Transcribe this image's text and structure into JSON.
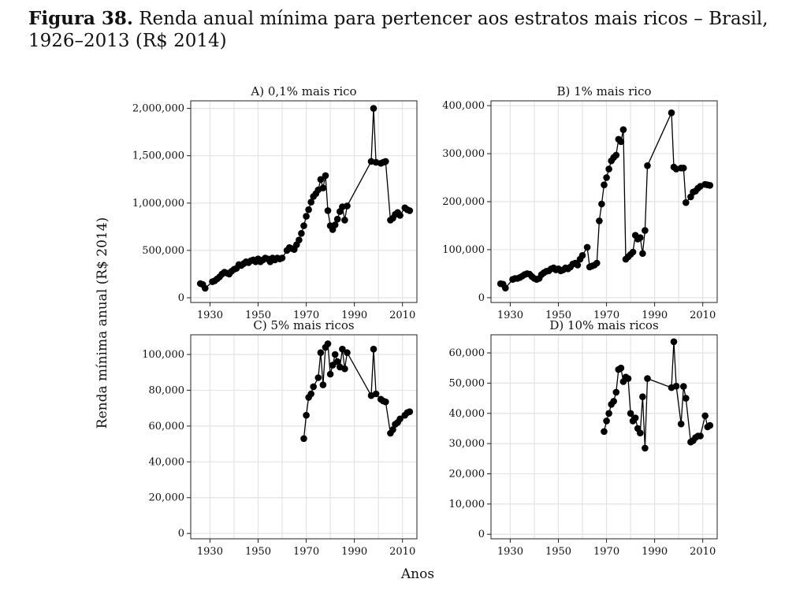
{
  "figure": {
    "label": "Figura 38.",
    "title": "Renda anual mínima para pertencer aos estratos mais ricos – Brasil, 1926–2013 (R$ 2014)"
  },
  "chart_data": {
    "type": "line",
    "shared_xlabel": "Anos",
    "shared_ylabel": "Renda mínima anual (R$ 2014)",
    "grid": true,
    "panels": [
      {
        "title": "A) 0,1% mais rico",
        "xlim": [
          1922,
          2016
        ],
        "xticks": [
          1930,
          1950,
          1970,
          1990,
          2010
        ],
        "xtick_labels": [
          "1930",
          "1950",
          "1970",
          "1990",
          "2010"
        ],
        "ylim": [
          -50000,
          2080000
        ],
        "yticks": [
          0,
          500000,
          1000000,
          1500000,
          2000000
        ],
        "ytick_labels": [
          "0",
          "500,000",
          "1,000,000",
          "1,500,000",
          "2,000,000"
        ],
        "x": [
          1926,
          1927,
          1928,
          1931,
          1932,
          1933,
          1934,
          1935,
          1936,
          1937,
          1938,
          1939,
          1940,
          1941,
          1942,
          1943,
          1944,
          1945,
          1946,
          1947,
          1948,
          1949,
          1950,
          1951,
          1952,
          1953,
          1954,
          1955,
          1956,
          1957,
          1958,
          1959,
          1960,
          1962,
          1963,
          1964,
          1965,
          1966,
          1967,
          1968,
          1969,
          1970,
          1971,
          1972,
          1973,
          1974,
          1975,
          1976,
          1977,
          1978,
          1979,
          1980,
          1981,
          1982,
          1983,
          1984,
          1985,
          1986,
          1987,
          1997,
          1998,
          1999,
          2001,
          2002,
          2003,
          2005,
          2006,
          2007,
          2008,
          2009,
          2011,
          2012,
          2013
        ],
        "y": [
          150000,
          140000,
          100000,
          170000,
          180000,
          200000,
          220000,
          250000,
          270000,
          260000,
          250000,
          280000,
          300000,
          310000,
          350000,
          340000,
          360000,
          380000,
          370000,
          390000,
          400000,
          380000,
          410000,
          380000,
          400000,
          420000,
          410000,
          380000,
          420000,
          400000,
          420000,
          410000,
          420000,
          500000,
          530000,
          520000,
          510000,
          560000,
          610000,
          680000,
          760000,
          860000,
          930000,
          1010000,
          1070000,
          1100000,
          1140000,
          1250000,
          1160000,
          1290000,
          920000,
          760000,
          720000,
          770000,
          830000,
          910000,
          960000,
          820000,
          970000,
          1440000,
          2000000,
          1430000,
          1420000,
          1430000,
          1440000,
          820000,
          840000,
          880000,
          900000,
          870000,
          950000,
          930000,
          920000
        ]
      },
      {
        "title": "B) 1% mais rico",
        "xlim": [
          1922,
          2016
        ],
        "xticks": [
          1930,
          1950,
          1970,
          1990,
          2010
        ],
        "xtick_labels": [
          "1930",
          "1950",
          "1970",
          "1990",
          "2010"
        ],
        "ylim": [
          -10000,
          410000
        ],
        "yticks": [
          0,
          100000,
          200000,
          300000,
          400000
        ],
        "ytick_labels": [
          "0",
          "100,000",
          "200,000",
          "300,000",
          "400,000"
        ],
        "x": [
          1926,
          1927,
          1928,
          1931,
          1932,
          1933,
          1934,
          1935,
          1936,
          1937,
          1938,
          1939,
          1940,
          1941,
          1942,
          1943,
          1944,
          1945,
          1946,
          1947,
          1948,
          1949,
          1950,
          1951,
          1952,
          1953,
          1954,
          1955,
          1956,
          1957,
          1958,
          1959,
          1960,
          1962,
          1963,
          1964,
          1965,
          1966,
          1967,
          1968,
          1969,
          1970,
          1971,
          1972,
          1973,
          1974,
          1975,
          1976,
          1977,
          1978,
          1979,
          1980,
          1981,
          1982,
          1983,
          1984,
          1985,
          1986,
          1987,
          1997,
          1998,
          1999,
          2001,
          2002,
          2003,
          2005,
          2006,
          2007,
          2008,
          2009,
          2011,
          2012,
          2013
        ],
        "y": [
          29000,
          28000,
          20000,
          38000,
          40000,
          40000,
          42000,
          45000,
          48000,
          50000,
          49000,
          44000,
          40000,
          38000,
          40000,
          48000,
          52000,
          55000,
          56000,
          60000,
          62000,
          58000,
          60000,
          56000,
          58000,
          62000,
          60000,
          64000,
          70000,
          72000,
          68000,
          80000,
          88000,
          105000,
          64000,
          66000,
          68000,
          72000,
          160000,
          195000,
          235000,
          250000,
          268000,
          285000,
          292000,
          297000,
          330000,
          325000,
          350000,
          80000,
          85000,
          90000,
          95000,
          130000,
          122000,
          125000,
          92000,
          140000,
          275000,
          385000,
          272000,
          268000,
          270000,
          270000,
          198000,
          210000,
          220000,
          222000,
          228000,
          232000,
          236000,
          235000,
          234000
        ]
      },
      {
        "title": "C) 5% mais ricos",
        "xlim": [
          1922,
          2016
        ],
        "xticks": [
          1930,
          1950,
          1970,
          1990,
          2010
        ],
        "xtick_labels": [
          "1930",
          "1950",
          "1970",
          "1990",
          "2010"
        ],
        "ylim": [
          -3000,
          111000
        ],
        "yticks": [
          0,
          20000,
          40000,
          60000,
          80000,
          100000
        ],
        "ytick_labels": [
          "0",
          "20,000",
          "40,000",
          "60,000",
          "80,000",
          "100,000"
        ],
        "x": [
          1969,
          1970,
          1971,
          1972,
          1973,
          1975,
          1976,
          1977,
          1978,
          1979,
          1980,
          1981,
          1982,
          1983,
          1984,
          1985,
          1986,
          1987,
          1997,
          1998,
          1999,
          2001,
          2002,
          2003,
          2005,
          2006,
          2007,
          2008,
          2009,
          2011,
          2012,
          2013
        ],
        "y": [
          53000,
          66000,
          76000,
          78000,
          82000,
          87000,
          101000,
          83000,
          104000,
          106000,
          89000,
          94000,
          100000,
          96000,
          93000,
          103000,
          92000,
          101000,
          77000,
          103000,
          78000,
          75000,
          74000,
          73500,
          56000,
          58000,
          61000,
          62000,
          64000,
          66000,
          67500,
          68000
        ]
      },
      {
        "title": "D) 10% mais ricos",
        "xlim": [
          1922,
          2016
        ],
        "xticks": [
          1930,
          1950,
          1970,
          1990,
          2010
        ],
        "xtick_labels": [
          "1930",
          "1950",
          "1970",
          "1990",
          "2010"
        ],
        "ylim": [
          -1500,
          66000
        ],
        "yticks": [
          0,
          10000,
          20000,
          30000,
          40000,
          50000,
          60000
        ],
        "ytick_labels": [
          "0",
          "10,000",
          "20,000",
          "30,000",
          "40,000",
          "50,000",
          "60,000"
        ],
        "x": [
          1969,
          1970,
          1971,
          1972,
          1973,
          1974,
          1975,
          1976,
          1977,
          1978,
          1979,
          1980,
          1981,
          1982,
          1983,
          1984,
          1985,
          1986,
          1987,
          1997,
          1998,
          1999,
          2001,
          2002,
          2003,
          2005,
          2006,
          2007,
          2008,
          2009,
          2011,
          2012,
          2013
        ],
        "y": [
          34000,
          37500,
          40000,
          43000,
          44000,
          47000,
          54500,
          55000,
          50500,
          52000,
          51500,
          40000,
          37500,
          38500,
          35000,
          33500,
          45500,
          28500,
          51500,
          48500,
          63700,
          49000,
          36500,
          48900,
          45000,
          30500,
          31000,
          32000,
          32500,
          32500,
          39200,
          35500,
          36000
        ]
      }
    ]
  }
}
